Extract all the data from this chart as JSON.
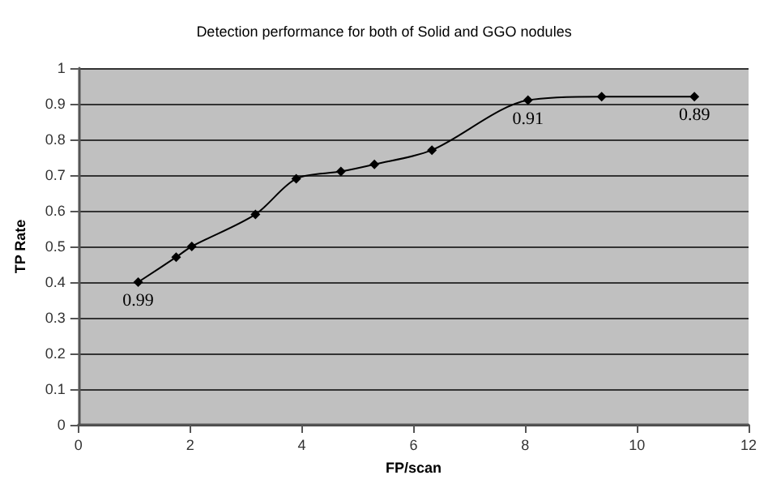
{
  "chart_data": {
    "type": "line",
    "title": "Detection performance for both of Solid and GGO nodules",
    "xlabel": "FP/scan",
    "ylabel": "TP Rate",
    "x": [
      1.07,
      1.75,
      2.03,
      3.17,
      3.9,
      4.7,
      5.3,
      6.33,
      8.05,
      9.37,
      11.03
    ],
    "series": [
      {
        "color": "#000000",
        "values": [
          0.4,
          0.47,
          0.5,
          0.59,
          0.69,
          0.71,
          0.73,
          0.77,
          0.91,
          0.92,
          0.92
        ]
      }
    ],
    "annotations": [
      {
        "text": "0.99",
        "x": 1.07,
        "y": 0.4
      },
      {
        "text": "0.91",
        "x": 8.05,
        "y": 0.91
      },
      {
        "text": "0.89",
        "x": 11.03,
        "y": 0.92
      }
    ],
    "xlim": [
      0,
      12
    ],
    "xticks": [
      0,
      2,
      4,
      6,
      8,
      10,
      12
    ],
    "ylim": [
      0,
      1
    ],
    "yticks": [
      0,
      0.1,
      0.2,
      0.3,
      0.4,
      0.5,
      0.6,
      0.7,
      0.8,
      0.9,
      1
    ],
    "grid": "y",
    "marker": "diamond",
    "line_style": "solid"
  }
}
